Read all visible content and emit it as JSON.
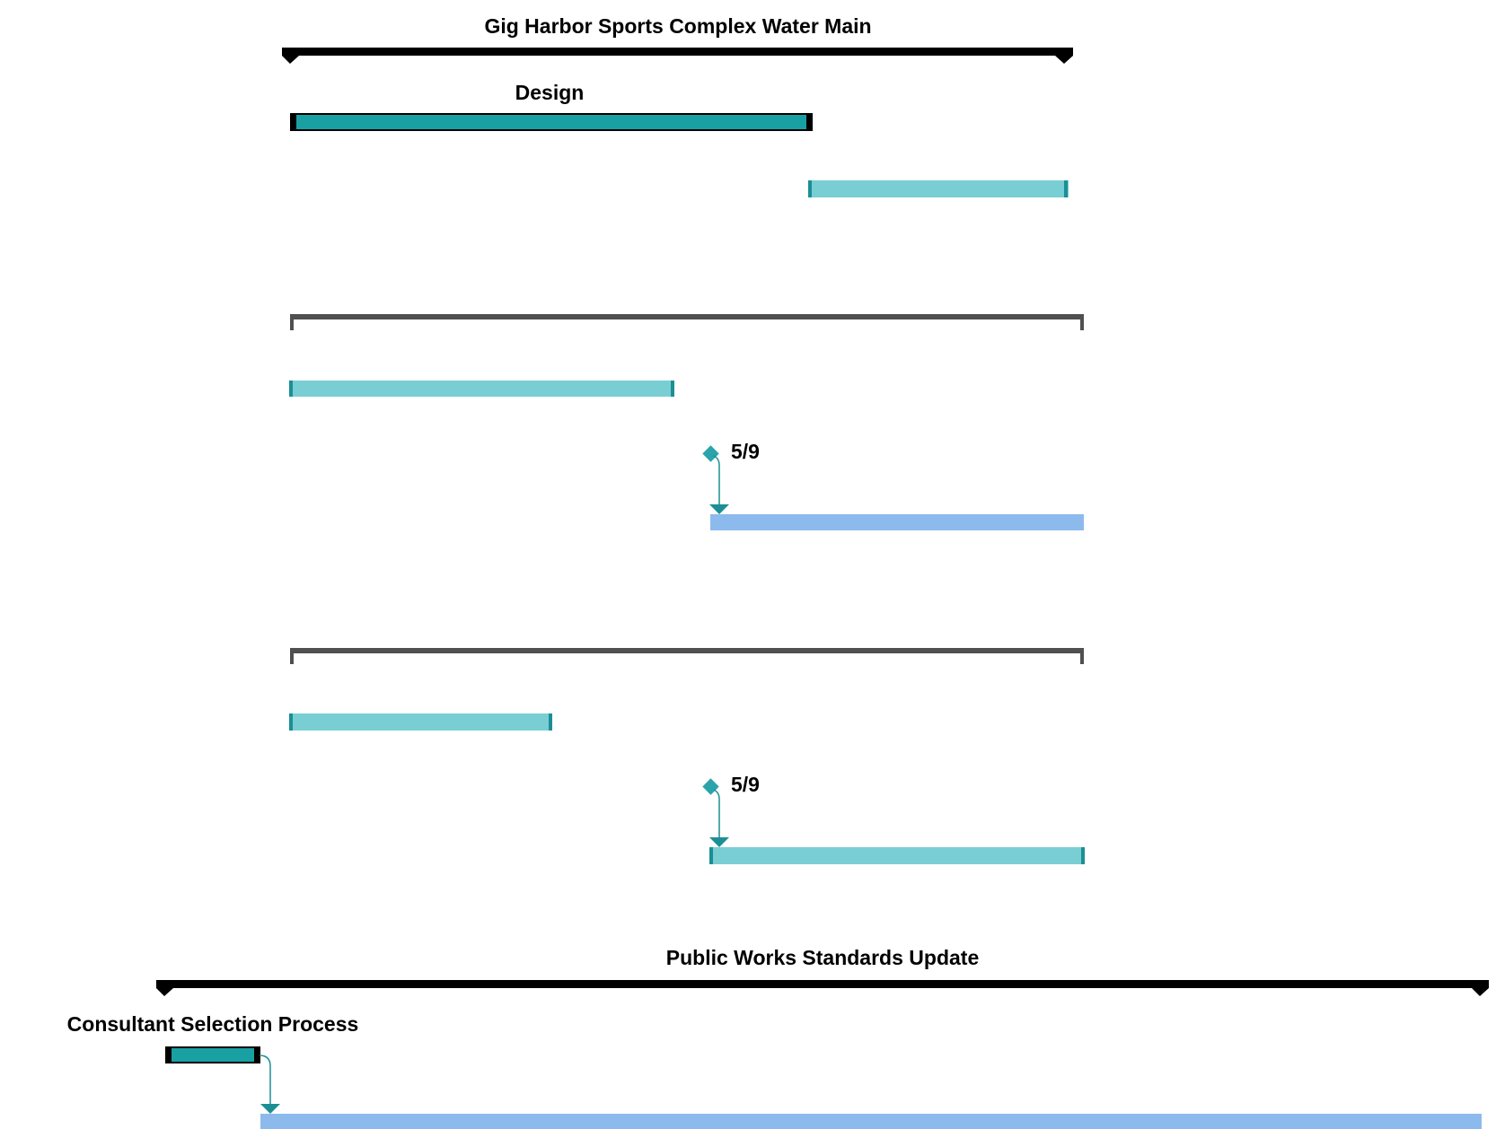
{
  "colors": {
    "summary": "#000000",
    "group": "#505050",
    "task_dark": "#19A0A3",
    "task_light": "#79CED4",
    "task_blue": "#8DBAEC",
    "task_end_cap": "#1B8F95",
    "milestone": "#2AA3AB",
    "connector": "#1B8F95"
  },
  "labels": {
    "water_main_title": "Gig Harbor Sports Complex Water Main",
    "design": "Design",
    "milestone_1": "5/9",
    "milestone_2": "5/9",
    "standards_title": "Public Works Standards Update",
    "consultant_selection": "Consultant Selection Process"
  }
}
